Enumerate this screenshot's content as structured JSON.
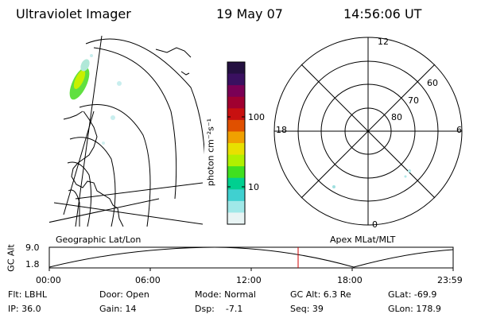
{
  "header": {
    "title": "Ultraviolet Imager",
    "date": "19 May 07",
    "time": "14:56:06 UT"
  },
  "colorbar": {
    "unit": "photon cm⁻²s⁻¹",
    "ticks": [
      "100",
      "10"
    ],
    "colors": [
      "#241040",
      "#3a1060",
      "#7a0055",
      "#a00030",
      "#c81010",
      "#e05000",
      "#f0a000",
      "#e8e000",
      "#b0f000",
      "#40e020",
      "#00d090",
      "#40d0d0",
      "#a0e8e8",
      "#e8f4f4"
    ]
  },
  "polar_plot": {
    "mlt_labels": {
      "top": "12",
      "left": "18",
      "right": "6",
      "bottom": "0"
    },
    "lat_labels": [
      "60",
      "70",
      "80"
    ]
  },
  "strip": {
    "left_label": "Geographic Lat/Lon",
    "right_label": "Apex MLat/MLT",
    "axis_title": "GC Alt",
    "ytick_top": "9.0",
    "ytick_bottom": "1.8",
    "xticks": [
      "00:00",
      "06:00",
      "12:00",
      "18:00",
      "23:59"
    ],
    "marker_color": "#d00000"
  },
  "footer": {
    "filter": "Flt: LBHL",
    "ip": "IP: 36.0",
    "door": "Door: Open",
    "gain": "Gain: 14",
    "mode": "Mode: Normal",
    "dsp": "Dsp:    -7.1",
    "gc_alt": "GC Alt: 6.3 Re",
    "seq": "Seq: 39",
    "glat": "GLat: -69.9",
    "glon": "GLon: 178.9"
  }
}
